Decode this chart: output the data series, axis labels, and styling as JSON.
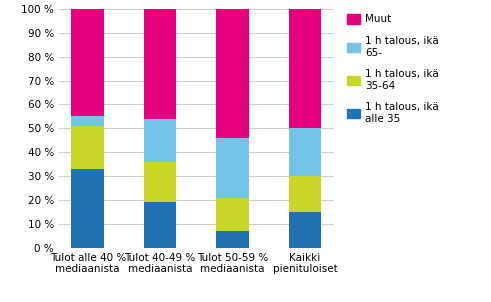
{
  "categories": [
    "Tulot alle 40 %\nmediaanista",
    "Tulot 40-49 %\nmediaanista",
    "Tulot 50-59 %\nmediaanista",
    "Kaikki\npienituloiset"
  ],
  "series": [
    {
      "label": "1 h talous, ikä\nalle 35",
      "values": [
        33,
        19,
        7,
        15
      ],
      "color": "#2072b2"
    },
    {
      "label": "1 h talous, ikä\n35-64",
      "values": [
        18,
        17,
        14,
        15
      ],
      "color": "#c8d628"
    },
    {
      "label": "1 h talous, ikä\n65-",
      "values": [
        4,
        18,
        25,
        20
      ],
      "color": "#74c4e8"
    },
    {
      "label": "Muut",
      "values": [
        45,
        46,
        54,
        50
      ],
      "color": "#e5007d"
    }
  ],
  "ylim": [
    0,
    100
  ],
  "yticks": [
    0,
    10,
    20,
    30,
    40,
    50,
    60,
    70,
    80,
    90,
    100
  ],
  "ytick_labels": [
    "0 %",
    "10 %",
    "20 %",
    "30 %",
    "40 %",
    "50 %",
    "60 %",
    "70 %",
    "80 %",
    "90 %",
    "100 %"
  ],
  "background_color": "#ffffff",
  "grid_color": "#cccccc",
  "bar_width": 0.45,
  "figsize": [
    4.91,
    3.02
  ],
  "dpi": 100
}
